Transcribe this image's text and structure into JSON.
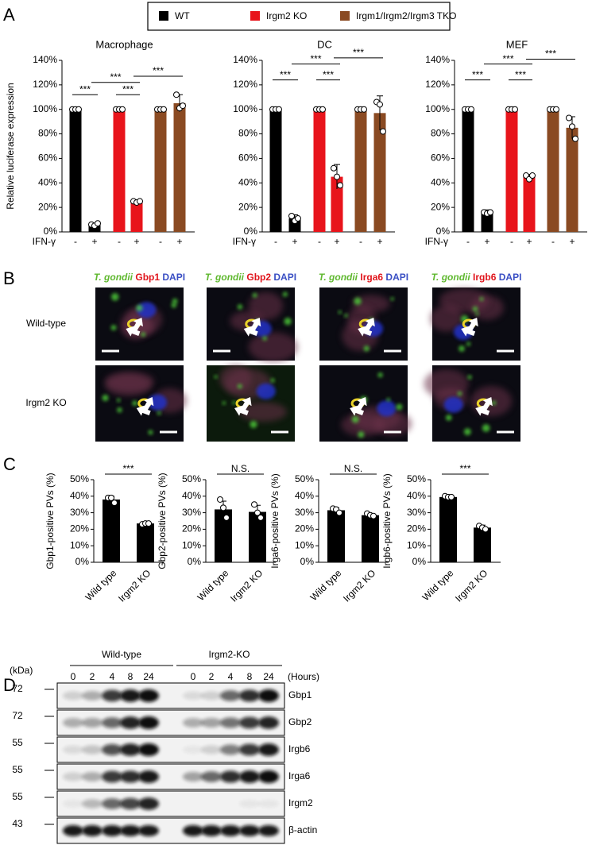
{
  "panel_labels": [
    "A",
    "B",
    "C",
    "D"
  ],
  "chart_data": [
    {
      "type": "bar",
      "title": "Macrophage",
      "ylabel": "Relative luciferase expression",
      "xlabel": "IFN-γ",
      "categories": [
        "-",
        "+"
      ],
      "series": [
        {
          "name": "WT",
          "color": "#000000",
          "values": [
            100,
            6
          ],
          "errors": [
            0,
            1
          ],
          "points": [
            [
              100,
              100,
              100
            ],
            [
              6,
              5,
              7
            ]
          ]
        },
        {
          "name": "Irgm2 KO",
          "color": "#e8141b",
          "values": [
            100,
            25
          ],
          "errors": [
            0,
            1
          ],
          "points": [
            [
              100,
              100,
              100
            ],
            [
              25,
              24,
              25
            ]
          ]
        },
        {
          "name": "Irgm1/Irgm2/Irgm3 TKO",
          "color": "#8a4a22",
          "values": [
            100,
            105
          ],
          "errors": [
            0,
            7
          ],
          "points": [
            [
              100,
              100,
              100
            ],
            [
              112,
              101,
              103
            ]
          ]
        }
      ],
      "ylim": [
        0,
        140
      ],
      "yticks": [
        {
          "value": 0,
          "label": "0%"
        },
        {
          "value": 20,
          "label": "20%"
        },
        {
          "value": 40,
          "label": "40%"
        },
        {
          "value": 60,
          "label": "60%"
        },
        {
          "value": 80,
          "label": "80%"
        },
        {
          "value": 100,
          "label": "100%"
        },
        {
          "value": 120,
          "label": "120%"
        },
        {
          "value": 140,
          "label": "140%"
        }
      ],
      "annotations": [
        "***",
        "***",
        "***",
        "***"
      ]
    },
    {
      "type": "bar",
      "title": "DC",
      "xlabel": "IFN-γ",
      "categories": [
        "-",
        "+"
      ],
      "series": [
        {
          "color": "#000000",
          "values": [
            100,
            11
          ],
          "errors": [
            0,
            3
          ],
          "points": [
            [
              100,
              100,
              100
            ],
            [
              13,
              9,
              11
            ]
          ]
        },
        {
          "color": "#e8141b",
          "values": [
            100,
            45
          ],
          "errors": [
            0,
            10
          ],
          "points": [
            [
              100,
              100,
              100
            ],
            [
              52,
              45,
              38
            ]
          ]
        },
        {
          "color": "#8a4a22",
          "values": [
            100,
            97
          ],
          "errors": [
            0,
            14
          ],
          "points": [
            [
              100,
              100,
              100
            ],
            [
              106,
              104,
              82
            ]
          ]
        }
      ],
      "ylim": [
        0,
        140
      ],
      "yticks": [
        {
          "value": 0,
          "label": "0%"
        },
        {
          "value": 20,
          "label": "20%"
        },
        {
          "value": 40,
          "label": "40%"
        },
        {
          "value": 60,
          "label": "60%"
        },
        {
          "value": 80,
          "label": "80%"
        },
        {
          "value": 100,
          "label": "100%"
        },
        {
          "value": 120,
          "label": "120%"
        },
        {
          "value": 140,
          "label": "140%"
        }
      ],
      "annotations": [
        "***",
        "***",
        "***",
        "***"
      ]
    },
    {
      "type": "bar",
      "title": "MEF",
      "xlabel": "IFN-γ",
      "categories": [
        "-",
        "+"
      ],
      "series": [
        {
          "color": "#000000",
          "values": [
            100,
            16
          ],
          "errors": [
            0,
            2
          ],
          "points": [
            [
              100,
              100,
              100
            ],
            [
              16,
              15,
              16
            ]
          ]
        },
        {
          "color": "#e8141b",
          "values": [
            100,
            45
          ],
          "errors": [
            0,
            2
          ],
          "points": [
            [
              100,
              100,
              100
            ],
            [
              46,
              43,
              46
            ]
          ]
        },
        {
          "color": "#8a4a22",
          "values": [
            100,
            85
          ],
          "errors": [
            0,
            9
          ],
          "points": [
            [
              100,
              100,
              100
            ],
            [
              93,
              86,
              76
            ]
          ]
        }
      ],
      "ylim": [
        0,
        140
      ],
      "yticks": [
        {
          "value": 0,
          "label": "0%"
        },
        {
          "value": 20,
          "label": "20%"
        },
        {
          "value": 40,
          "label": "40%"
        },
        {
          "value": 60,
          "label": "60%"
        },
        {
          "value": 80,
          "label": "80%"
        },
        {
          "value": 100,
          "label": "100%"
        },
        {
          "value": 120,
          "label": "120%"
        },
        {
          "value": 140,
          "label": "140%"
        }
      ],
      "annotations": [
        "***",
        "***",
        "***",
        "***"
      ]
    },
    {
      "type": "bar",
      "ylabel": "Gbp1-positive PVs (%)",
      "categories": [
        "Wild type",
        "Irgm2 KO"
      ],
      "color": "#000000",
      "values": [
        38,
        23.5
      ],
      "errors": [
        2,
        0.5
      ],
      "points": [
        [
          39,
          39,
          36
        ],
        [
          23,
          23.5,
          23.5
        ]
      ],
      "ylim": [
        0,
        50
      ],
      "yticks": [
        {
          "value": 0,
          "label": "0%"
        },
        {
          "value": 10,
          "label": "10%"
        },
        {
          "value": 20,
          "label": "20%"
        },
        {
          "value": 30,
          "label": "30%"
        },
        {
          "value": 40,
          "label": "40%"
        },
        {
          "value": 50,
          "label": "50%"
        }
      ],
      "annotations": [
        "***"
      ]
    },
    {
      "type": "bar",
      "ylabel": "Gbp2-positive PVs (%)",
      "categories": [
        "Wild type",
        "Irgm2 KO"
      ],
      "color": "#000000",
      "values": [
        32,
        30.5
      ],
      "errors": [
        5,
        4
      ],
      "points": [
        [
          38,
          33,
          27
        ],
        [
          35,
          30,
          27
        ]
      ],
      "ylim": [
        0,
        50
      ],
      "yticks": [
        {
          "value": 0,
          "label": "0%"
        },
        {
          "value": 10,
          "label": "10%"
        },
        {
          "value": 20,
          "label": "20%"
        },
        {
          "value": 30,
          "label": "30%"
        },
        {
          "value": 40,
          "label": "40%"
        },
        {
          "value": 50,
          "label": "50%"
        }
      ],
      "annotations": [
        "N.S."
      ]
    },
    {
      "type": "bar",
      "ylabel": "Irga6-positive PVs (%)",
      "categories": [
        "Wild type",
        "Irgm2 KO"
      ],
      "color": "#000000",
      "values": [
        31.5,
        28.5
      ],
      "errors": [
        1.5,
        1
      ],
      "points": [
        [
          32.5,
          32,
          30
        ],
        [
          29.5,
          28.5,
          28
        ]
      ],
      "ylim": [
        0,
        50
      ],
      "yticks": [
        {
          "value": 0,
          "label": "0%"
        },
        {
          "value": 10,
          "label": "10%"
        },
        {
          "value": 20,
          "label": "20%"
        },
        {
          "value": 30,
          "label": "30%"
        },
        {
          "value": 40,
          "label": "40%"
        },
        {
          "value": 50,
          "label": "50%"
        }
      ],
      "annotations": [
        "N.S."
      ]
    },
    {
      "type": "bar",
      "ylabel": "Irgb6-positive PVs (%)",
      "categories": [
        "Wild type",
        "Irgm2 KO"
      ],
      "color": "#000000",
      "values": [
        39.5,
        21
      ],
      "errors": [
        0.5,
        1.5
      ],
      "points": [
        [
          40,
          39.5,
          39.5
        ],
        [
          22,
          21,
          20
        ]
      ],
      "ylim": [
        0,
        50
      ],
      "yticks": [
        {
          "value": 0,
          "label": "0%"
        },
        {
          "value": 10,
          "label": "10%"
        },
        {
          "value": 20,
          "label": "20%"
        },
        {
          "value": 30,
          "label": "30%"
        },
        {
          "value": 40,
          "label": "40%"
        },
        {
          "value": 50,
          "label": "50%"
        }
      ],
      "annotations": [
        "***"
      ]
    }
  ],
  "panel_b": {
    "columns": [
      [
        "T. gondii",
        "Gbp1",
        "DAPI"
      ],
      [
        "T. gondii",
        "Gbp2",
        "DAPI"
      ],
      [
        "T. gondii",
        "Irga6",
        "DAPI"
      ],
      [
        "T. gondii",
        "Irgb6",
        "DAPI"
      ]
    ],
    "rows": [
      "Wild-type",
      "Irgm2 KO"
    ]
  },
  "panel_d": {
    "unit": "(kDa)",
    "groups": [
      "Wild-type",
      "Irgm2-KO"
    ],
    "hours": [
      0,
      2,
      4,
      8,
      24
    ],
    "hours_label": "(Hours)",
    "rows": [
      {
        "marker": 72,
        "protein": "Gbp1"
      },
      {
        "marker": 72,
        "protein": "Gbp2"
      },
      {
        "marker": 55,
        "protein": "Irgb6"
      },
      {
        "marker": 55,
        "protein": "Irga6"
      },
      {
        "marker": 55,
        "protein": "Irgm2"
      },
      {
        "marker": 43,
        "protein": "β-actin"
      }
    ]
  }
}
